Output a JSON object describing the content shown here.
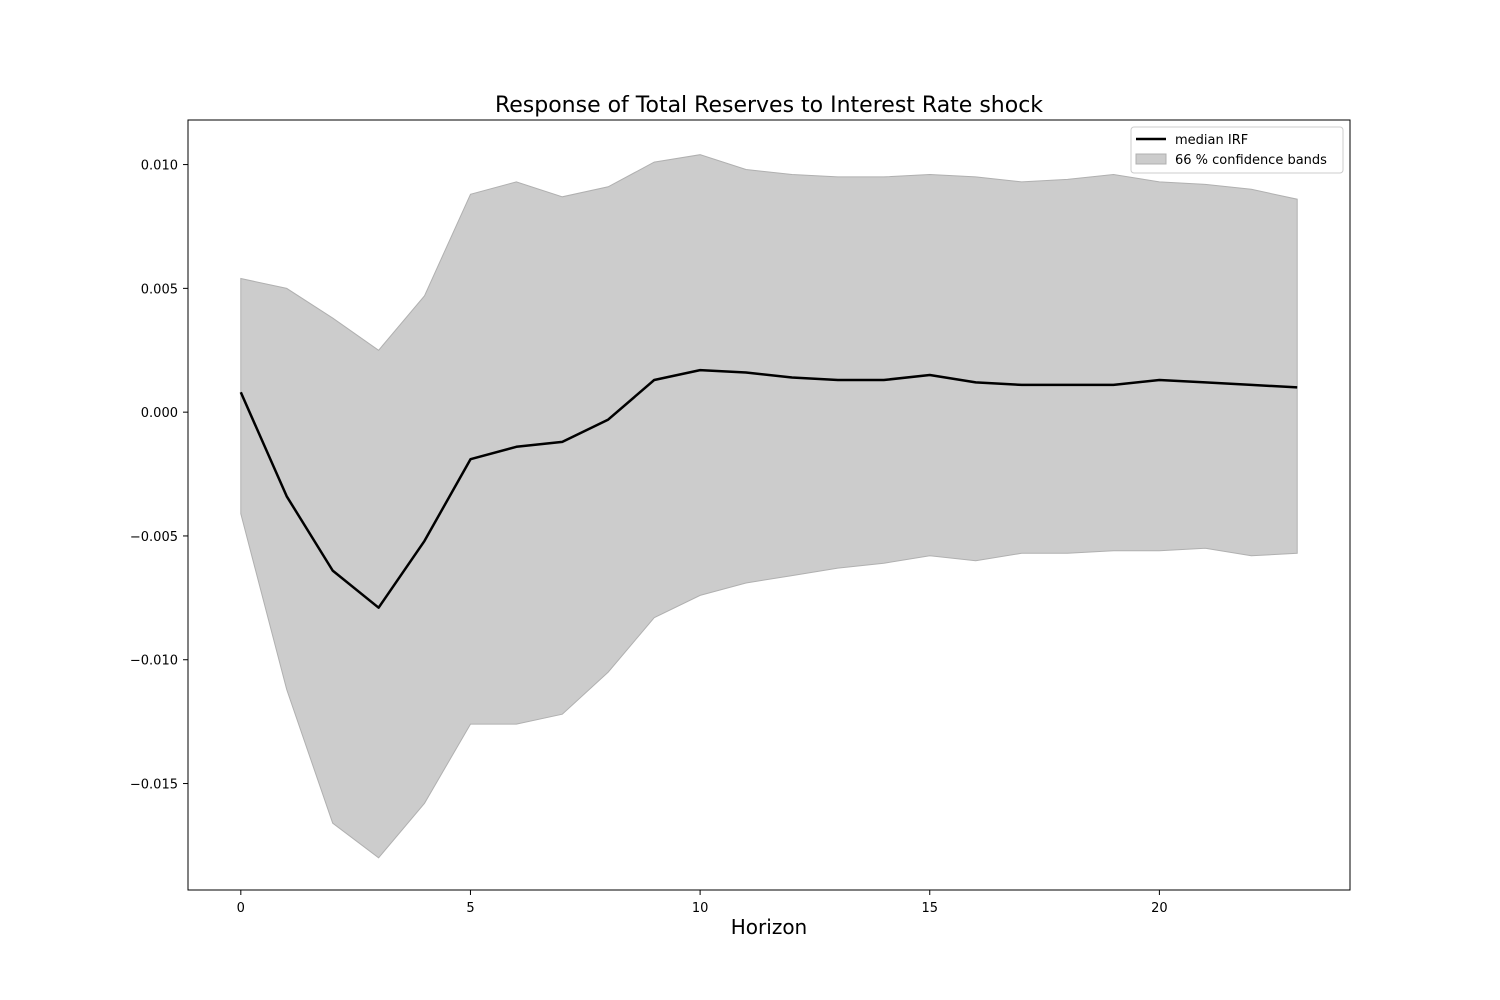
{
  "chart_data": {
    "type": "line",
    "title": "Response of Total Reserves to Interest Rate shock",
    "xlabel": "Horizon",
    "ylabel": "",
    "xlim": [
      -1.15,
      24.15
    ],
    "ylim": [
      -0.0193,
      0.0118
    ],
    "xticks": [
      0,
      5,
      10,
      15,
      20
    ],
    "yticks": [
      -0.015,
      -0.01,
      -0.005,
      0.0,
      0.005,
      0.01
    ],
    "ytick_labels": [
      "−0.015",
      "−0.010",
      "−0.005",
      "0.000",
      "0.005",
      "0.010"
    ],
    "grid": false,
    "legend": {
      "position": "top-right",
      "entries": [
        "median IRF",
        "66 % confidence bands"
      ]
    },
    "x": [
      0,
      1,
      2,
      3,
      4,
      5,
      6,
      7,
      8,
      9,
      10,
      11,
      12,
      13,
      14,
      15,
      16,
      17,
      18,
      19,
      20,
      21,
      22,
      23
    ],
    "series": [
      {
        "name": "median IRF",
        "color": "#000000",
        "values": [
          0.0008,
          -0.0034,
          -0.0064,
          -0.0079,
          -0.0052,
          -0.0019,
          -0.0014,
          -0.0012,
          -0.0003,
          0.0013,
          0.0017,
          0.0016,
          0.0014,
          0.0013,
          0.0013,
          0.0015,
          0.0012,
          0.0011,
          0.0011,
          0.0011,
          0.0013,
          0.0012,
          0.0011,
          0.001
        ]
      }
    ],
    "bands": [
      {
        "name": "66 % confidence bands",
        "color": "#cccccc",
        "edge_color": "#b0b0b0",
        "upper": [
          0.0054,
          0.005,
          0.0038,
          0.0025,
          0.0047,
          0.0088,
          0.0093,
          0.0087,
          0.0091,
          0.0101,
          0.0104,
          0.0098,
          0.0096,
          0.0095,
          0.0095,
          0.0096,
          0.0095,
          0.0093,
          0.0094,
          0.0096,
          0.0093,
          0.0092,
          0.009,
          0.0086
        ],
        "lower": [
          -0.0041,
          -0.0112,
          -0.0166,
          -0.018,
          -0.0158,
          -0.0126,
          -0.0126,
          -0.0122,
          -0.0105,
          -0.0083,
          -0.0074,
          -0.0069,
          -0.0066,
          -0.0063,
          -0.0061,
          -0.0058,
          -0.006,
          -0.0057,
          -0.0057,
          -0.0056,
          -0.0056,
          -0.0055,
          -0.0058,
          -0.0057
        ]
      }
    ]
  }
}
